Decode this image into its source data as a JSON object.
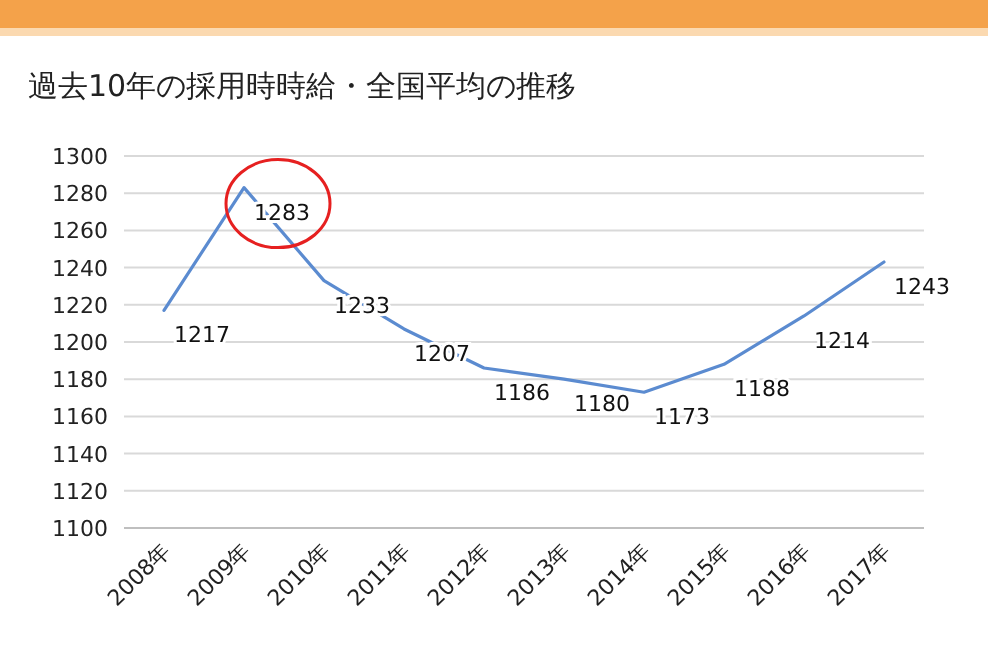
{
  "chart_data": {
    "type": "line",
    "title": "過去10年の採用時時給・全国平均の推移",
    "categories": [
      "2008年",
      "2009年",
      "2010年",
      "2011年",
      "2012年",
      "2013年",
      "2014年",
      "2015年",
      "2016年",
      "2017年"
    ],
    "series": [
      {
        "color": "#5b8bd0",
        "values": [
          1217,
          1283,
          1233,
          1207,
          1186,
          1180,
          1173,
          1188,
          1214,
          1243
        ]
      }
    ],
    "ylim": [
      1100,
      1300
    ],
    "yticks": [
      1100,
      1120,
      1140,
      1160,
      1180,
      1200,
      1220,
      1240,
      1260,
      1280,
      1300
    ],
    "grid": "y",
    "marker": "none",
    "line_style": "solid",
    "data_labels": true
  }
}
